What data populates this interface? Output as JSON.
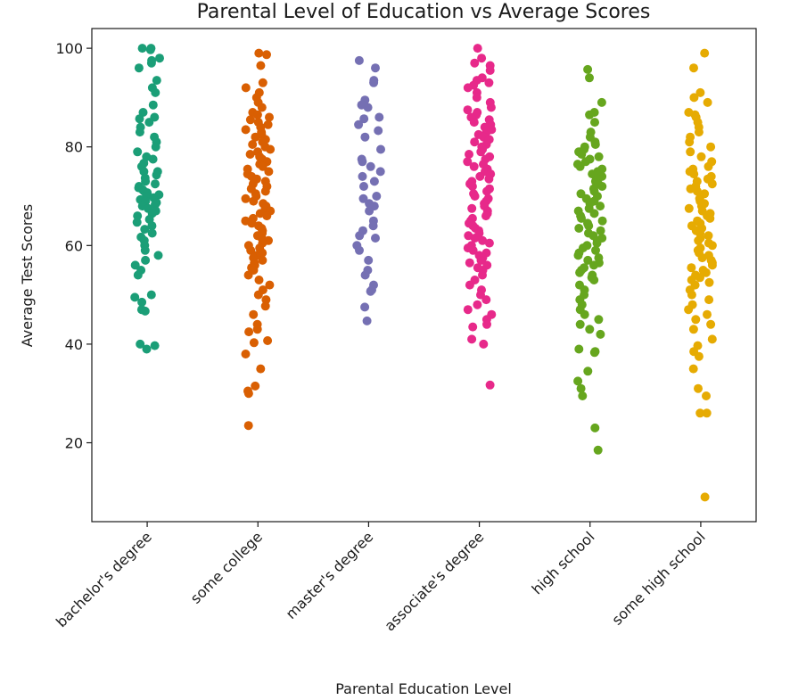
{
  "chart_data": {
    "type": "scatter",
    "style": "strip",
    "title": "Parental Level of Education vs Average Scores",
    "xlabel": "Parental Education Level",
    "ylabel": "Average Test Scores",
    "ylim": [
      4,
      104
    ],
    "yticks": [
      20,
      40,
      60,
      80,
      100
    ],
    "grid": false,
    "categories": [
      "bachelor's degree",
      "some college",
      "master's degree",
      "associate's degree",
      "high school",
      "some high school"
    ],
    "series": [
      {
        "color": "#1b9e77",
        "values": [
          100,
          100,
          99.7,
          98,
          97.5,
          97,
          96,
          93.5,
          92,
          91,
          88.5,
          87,
          86,
          85.7,
          85,
          84,
          83,
          82,
          81,
          80,
          79,
          78,
          77.5,
          76.7,
          76,
          75,
          75,
          74.3,
          73.7,
          73,
          72.5,
          72,
          71.7,
          71.3,
          71,
          70.7,
          70.3,
          70,
          69.7,
          69.3,
          69,
          68.7,
          68.3,
          68,
          67.5,
          67,
          66.5,
          66,
          65.3,
          64.7,
          64,
          63.3,
          62.5,
          61.7,
          61,
          60,
          59,
          58,
          57,
          56,
          55,
          54,
          50,
          49.5,
          48.5,
          47,
          46.7,
          40,
          39.7,
          39
        ]
      },
      {
        "color": "#d95f02",
        "values": [
          99,
          98.7,
          96.5,
          93,
          92,
          91,
          90,
          89,
          88,
          87,
          86.5,
          86,
          85.5,
          85,
          84.5,
          84,
          83.5,
          83,
          82.5,
          82,
          81.5,
          81,
          80.5,
          80,
          79.5,
          79,
          78.5,
          78,
          77.5,
          77,
          76.5,
          76,
          75.5,
          75,
          74.5,
          74,
          73.5,
          73,
          72.5,
          72,
          71.5,
          71,
          70.5,
          70,
          69.5,
          69,
          68.5,
          68,
          67.5,
          67,
          66.5,
          66,
          65.5,
          65,
          64.5,
          64,
          63.5,
          63,
          62.5,
          62,
          61.5,
          61,
          60.5,
          60,
          59.5,
          59,
          58.5,
          58,
          57.5,
          57,
          56.5,
          56,
          55.5,
          55,
          54,
          53,
          52,
          51,
          50,
          49,
          47.7,
          46,
          44,
          43,
          42.5,
          40.7,
          40.3,
          38,
          35,
          31.5,
          30.5,
          30,
          23.5
        ]
      },
      {
        "color": "#7570b3",
        "values": [
          97.5,
          96,
          93.5,
          93,
          89.5,
          88.5,
          88,
          86,
          85.7,
          84.5,
          83.3,
          82,
          79.5,
          77.5,
          77,
          76,
          75,
          74,
          73,
          72,
          70,
          69.5,
          68.5,
          68,
          67,
          65,
          64,
          63,
          62,
          61.5,
          60,
          59,
          57,
          55,
          54,
          52,
          51,
          50.7,
          47.5,
          44.7
        ]
      },
      {
        "color": "#e7298a",
        "values": [
          100,
          98,
          97,
          96.5,
          95.5,
          94,
          93.5,
          93,
          92.5,
          92,
          91,
          90,
          89,
          88,
          87.5,
          87,
          86.5,
          86,
          85.5,
          85,
          84.5,
          84,
          83.5,
          83,
          82.5,
          82,
          81.5,
          81,
          80.5,
          80,
          79.5,
          79,
          78.5,
          78,
          77.5,
          77,
          76.5,
          76,
          75.5,
          75,
          74.5,
          74,
          73.5,
          73,
          72.5,
          72,
          71.5,
          71,
          70.5,
          70,
          69.5,
          69,
          68.5,
          68,
          67.5,
          67,
          66.5,
          66,
          65.5,
          65,
          64.5,
          64,
          63.5,
          63,
          62.5,
          62,
          61.5,
          61,
          60.5,
          60,
          59.5,
          59,
          58.5,
          58,
          57.5,
          57,
          56.5,
          56,
          55.5,
          55,
          54,
          53,
          52,
          51,
          50,
          49,
          48,
          47,
          46,
          45,
          44,
          43.5,
          41,
          40,
          31.7
        ]
      },
      {
        "color": "#66a61e",
        "values": [
          95.7,
          94,
          89,
          87,
          86.5,
          85,
          83,
          82,
          81,
          80.5,
          80,
          79.5,
          79,
          78.5,
          78,
          77.5,
          77,
          76.5,
          76,
          75.5,
          75,
          74.5,
          74,
          73.5,
          73,
          72.5,
          72,
          71.5,
          71,
          70.5,
          70,
          69.5,
          69,
          68.5,
          68,
          67.5,
          67,
          66.5,
          66,
          65.5,
          65,
          64.5,
          64,
          63.5,
          63,
          62.5,
          62,
          61.5,
          61,
          60.5,
          60,
          59.5,
          59,
          58.5,
          58,
          57.5,
          57,
          56.5,
          56,
          55.5,
          55,
          54.5,
          54,
          53.5,
          53,
          52,
          51,
          50,
          49,
          48,
          47,
          46,
          45,
          44,
          43,
          42,
          39,
          38.5,
          38.3,
          34.5,
          32.5,
          31,
          29.5,
          23,
          18.5
        ]
      },
      {
        "color": "#e6ab02",
        "values": [
          99,
          96,
          91,
          90,
          89,
          87,
          86.5,
          86,
          85,
          84,
          83,
          82,
          81,
          80,
          79,
          78,
          77,
          76,
          75.5,
          75,
          74.5,
          74,
          73.5,
          73,
          72.5,
          72,
          71.5,
          71,
          70.5,
          70,
          69.5,
          69,
          68.5,
          68,
          67.5,
          67,
          66.5,
          66,
          65.5,
          65,
          64.5,
          64,
          63.5,
          63,
          62.5,
          62,
          61.5,
          61,
          60.5,
          60,
          59.5,
          59,
          58.5,
          58,
          57.5,
          57,
          56.5,
          56,
          55.5,
          55,
          54.5,
          54,
          53.5,
          53,
          52.5,
          52,
          51,
          50,
          49,
          48,
          47,
          46,
          45,
          44,
          43,
          41,
          39.7,
          38.5,
          37.5,
          35,
          31,
          29.5,
          26,
          26,
          9
        ]
      }
    ]
  }
}
